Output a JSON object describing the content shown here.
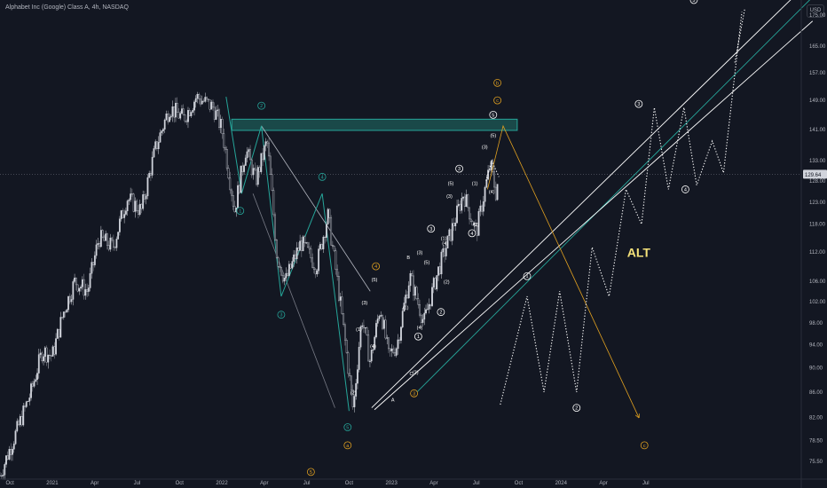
{
  "header": {
    "title": "Alphabet Inc (Google) Class A, 4h, NASDAQ",
    "currency": "USD"
  },
  "chart_data": {
    "type": "candlestick",
    "title": "Alphabet Inc (Google) Class A, 4h, NASDAQ",
    "symbol": "NASDAQ",
    "interval": "4h",
    "ylim": [
      73,
      180
    ],
    "y_ticks": [
      75.5,
      78.5,
      82.0,
      86.0,
      90.0,
      94.0,
      98.0,
      102.0,
      106.0,
      112.0,
      118.0,
      123.0,
      128.0,
      133.0,
      141.0,
      149.0,
      157.0,
      165.0,
      175.0
    ],
    "x_ticks": [
      "Oct",
      "2021",
      "Apr",
      "Jul",
      "Oct",
      "2022",
      "Apr",
      "Jul",
      "Oct",
      "2023",
      "Apr",
      "Jul",
      "Oct",
      "2024",
      "Apr",
      "Jul"
    ],
    "x_tick_months": [
      0,
      3,
      6,
      9,
      12,
      15,
      18,
      21,
      24,
      27,
      30,
      33,
      36,
      39,
      42,
      45
    ],
    "x_range_months": [
      -0.7,
      56.0
    ],
    "last_price": "129.64",
    "last_price_value": 129.64,
    "price_path": [
      [
        -0.7,
        73.5
      ],
      [
        0.5,
        80
      ],
      [
        1.5,
        86
      ],
      [
        2.3,
        93
      ],
      [
        3.0,
        92
      ],
      [
        3.8,
        100
      ],
      [
        4.6,
        106
      ],
      [
        5.5,
        104
      ],
      [
        6.3,
        115
      ],
      [
        7.3,
        113
      ],
      [
        8.3,
        124
      ],
      [
        9.3,
        121
      ],
      [
        10.3,
        136
      ],
      [
        11.3,
        147
      ],
      [
        12.3,
        144
      ],
      [
        13.2,
        150
      ],
      [
        14.4,
        147
      ],
      [
        15.0,
        141
      ],
      [
        15.9,
        121
      ],
      [
        16.7,
        136
      ],
      [
        17.4,
        128
      ],
      [
        18.2,
        138
      ],
      [
        18.9,
        111
      ],
      [
        19.5,
        106
      ],
      [
        20.6,
        114
      ],
      [
        21.7,
        109
      ],
      [
        22.5,
        120
      ],
      [
        23.6,
        97
      ],
      [
        24.3,
        83
      ],
      [
        24.9,
        99
      ],
      [
        25.5,
        91
      ],
      [
        26.2,
        101
      ],
      [
        26.8,
        92
      ],
      [
        27.4,
        94
      ],
      [
        28.3,
        107
      ],
      [
        29.3,
        98
      ],
      [
        30.3,
        108
      ],
      [
        31.2,
        116
      ],
      [
        32.1,
        125
      ],
      [
        33.0,
        116
      ],
      [
        34.0,
        132
      ],
      [
        34.4,
        125
      ],
      [
        34.6,
        129.64
      ]
    ],
    "waves": {
      "dark_theme": true,
      "primary_labels": [
        "1",
        "2",
        "3",
        "4",
        "5"
      ],
      "sub_labels": [
        "(1)",
        "(2)",
        "(3)",
        "(4)",
        "(5)"
      ],
      "abc_labels": [
        "a",
        "b",
        "c",
        "A",
        "B",
        "C"
      ],
      "alt_label": "ALT"
    },
    "colors": {
      "background": "#131722",
      "up": "#d1d4dc",
      "channel": "#ffffff",
      "teal": "#26a69a",
      "orange": "#e0a020",
      "zone_fill": "#1e5f5a"
    }
  }
}
